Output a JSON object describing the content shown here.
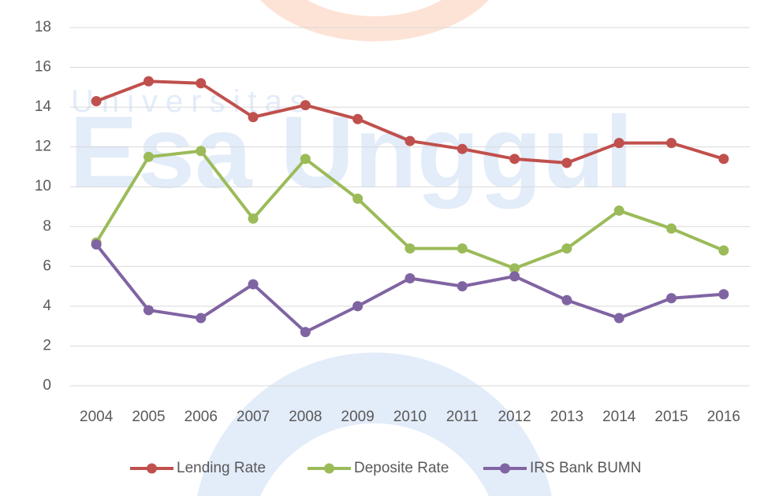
{
  "chart_data": {
    "type": "line",
    "watermark": [
      "Universitas",
      "Esa Unggul"
    ],
    "categories": [
      "2004",
      "2005",
      "2006",
      "2007",
      "2008",
      "2009",
      "2010",
      "2011",
      "2012",
      "2013",
      "2014",
      "2015",
      "2016"
    ],
    "series": [
      {
        "name": "Lending Rate",
        "color": "#c0504d",
        "values": [
          14.3,
          15.3,
          15.2,
          13.5,
          14.1,
          13.4,
          12.3,
          11.9,
          11.4,
          11.2,
          12.2,
          12.2,
          11.4
        ]
      },
      {
        "name": "Deposite Rate",
        "color": "#9bbb59",
        "values": [
          7.2,
          11.5,
          11.8,
          8.4,
          11.4,
          9.4,
          6.9,
          6.9,
          5.9,
          6.9,
          8.8,
          7.9,
          6.8
        ]
      },
      {
        "name": "IRS Bank BUMN",
        "color": "#8064a2",
        "values": [
          7.1,
          3.8,
          3.4,
          5.1,
          2.7,
          4.0,
          5.4,
          5.0,
          5.5,
          4.3,
          3.4,
          4.4,
          4.6
        ]
      }
    ],
    "ylim": [
      0,
      18
    ],
    "yticks": [
      0,
      2,
      4,
      6,
      8,
      10,
      12,
      14,
      16,
      18
    ],
    "grid": true,
    "legend": "bottom"
  }
}
